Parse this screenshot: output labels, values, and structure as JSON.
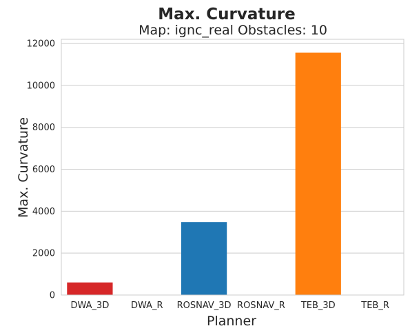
{
  "chart_data": {
    "type": "bar",
    "title": "Max. Curvature",
    "subtitle": "Map: ignc_real Obstacles: 10",
    "xlabel": "Planner",
    "ylabel": "Max. Curvature",
    "categories": [
      "DWA_3D",
      "DWA_R",
      "ROSNAV_3D",
      "ROSNAV_R",
      "TEB_3D",
      "TEB_R"
    ],
    "values": [
      600,
      0,
      3480,
      0,
      11560,
      0
    ],
    "bar_colors": [
      "#d62728",
      "#d62728",
      "#1f77b4",
      "#1f77b4",
      "#ff7f0e",
      "#ff7f0e"
    ],
    "ylim": [
      0,
      12200
    ],
    "yticks": [
      0,
      2000,
      4000,
      6000,
      8000,
      10000,
      12000
    ],
    "grid": "horizontal",
    "legend": "none"
  }
}
